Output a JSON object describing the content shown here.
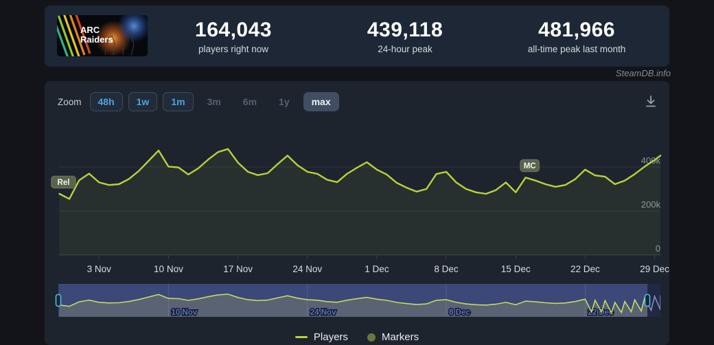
{
  "header": {
    "game_title": "ARC Raiders",
    "logo_line1": "ARC",
    "logo_line2": "Raiders",
    "stats": [
      {
        "value": "164,043",
        "label": "players right now"
      },
      {
        "value": "439,118",
        "label": "24-hour peak"
      },
      {
        "value": "481,966",
        "label": "all-time peak last month"
      }
    ]
  },
  "watermark": "SteamDB.info",
  "toolbar": {
    "zoom_label": "Zoom",
    "buttons": [
      {
        "label": "48h",
        "state": "enabled"
      },
      {
        "label": "1w",
        "state": "enabled"
      },
      {
        "label": "1m",
        "state": "enabled"
      },
      {
        "label": "3m",
        "state": "disabled"
      },
      {
        "label": "6m",
        "state": "disabled"
      },
      {
        "label": "1y",
        "state": "disabled"
      },
      {
        "label": "max",
        "state": "selected"
      }
    ]
  },
  "chart_data": {
    "type": "line",
    "title": "",
    "ylabel": "",
    "xlabel": "",
    "legend_position": "bottom",
    "grid": true,
    "ylim": [
      0,
      580000
    ],
    "dates": [
      "30 Oct",
      "31 Oct",
      "1 Nov",
      "2 Nov",
      "3 Nov",
      "4 Nov",
      "5 Nov",
      "6 Nov",
      "7 Nov",
      "8 Nov",
      "9 Nov",
      "10 Nov",
      "11 Nov",
      "12 Nov",
      "13 Nov",
      "14 Nov",
      "15 Nov",
      "16 Nov",
      "17 Nov",
      "18 Nov",
      "19 Nov",
      "20 Nov",
      "21 Nov",
      "22 Nov",
      "23 Nov",
      "24 Nov",
      "25 Nov",
      "26 Nov",
      "27 Nov",
      "28 Nov",
      "29 Nov",
      "30 Nov",
      "1 Dec",
      "2 Dec",
      "3 Dec",
      "4 Dec",
      "5 Dec",
      "6 Dec",
      "7 Dec",
      "8 Dec",
      "9 Dec",
      "10 Dec",
      "11 Dec",
      "12 Dec",
      "13 Dec",
      "14 Dec",
      "15 Dec",
      "16 Dec",
      "17 Dec",
      "18 Dec",
      "19 Dec",
      "20 Dec",
      "21 Dec",
      "22 Dec",
      "23 Dec",
      "24 Dec",
      "25 Dec",
      "26 Dec",
      "27 Dec",
      "28 Dec",
      "29 Dec",
      "30 Dec"
    ],
    "series": [
      {
        "name": "Players",
        "color": "#b7d43a",
        "values": [
          278000,
          255000,
          340000,
          370000,
          330000,
          318000,
          322000,
          345000,
          382000,
          428000,
          475000,
          402000,
          398000,
          366000,
          394000,
          434000,
          468000,
          482000,
          420000,
          378000,
          363000,
          372000,
          413000,
          452000,
          408000,
          378000,
          369000,
          342000,
          331000,
          369000,
          397000,
          422000,
          388000,
          366000,
          328000,
          306000,
          288000,
          300000,
          368000,
          378000,
          330000,
          300000,
          285000,
          278000,
          295000,
          330000,
          285000,
          352000,
          338000,
          322000,
          310000,
          318000,
          345000,
          388000,
          362000,
          356000,
          322000,
          338000,
          368000,
          402000,
          432000,
          452000
        ]
      }
    ],
    "x_ticks": [
      {
        "label": "3 Nov",
        "day": 4
      },
      {
        "label": "10 Nov",
        "day": 11
      },
      {
        "label": "17 Nov",
        "day": 18
      },
      {
        "label": "24 Nov",
        "day": 25
      },
      {
        "label": "1 Dec",
        "day": 32
      },
      {
        "label": "8 Dec",
        "day": 39
      },
      {
        "label": "15 Dec",
        "day": 46
      },
      {
        "label": "22 Dec",
        "day": 53
      },
      {
        "label": "29 Dec",
        "day": 60
      }
    ],
    "y_ticks": [
      {
        "label": "400k",
        "value": 400000
      },
      {
        "label": "200k",
        "value": 200000
      },
      {
        "label": "0",
        "value": 0
      }
    ],
    "markers": [
      {
        "label": "Rel",
        "date": "30 Oct"
      },
      {
        "label": "MC",
        "date": "16 Dec"
      }
    ]
  },
  "navigator": {
    "labels": [
      {
        "label": "10 Nov",
        "day": 11
      },
      {
        "label": "24 Nov",
        "day": 25
      },
      {
        "label": "8 Dec",
        "day": 39
      },
      {
        "label": "22 Dec",
        "day": 53
      }
    ]
  },
  "legend": [
    {
      "label": "Players",
      "swatch": "line",
      "color": "#b7d43a"
    },
    {
      "label": "Markers",
      "swatch": "circle",
      "color": "#687840"
    }
  ],
  "colors": {
    "line": "#b7d43a",
    "line_area": "rgba(183,212,58,0.07)",
    "grid": "#2d3540",
    "axis": "#3a4350",
    "y_label": "#8b939c",
    "x_label": "#d9dee3",
    "marker_badge_bg": "#59644b",
    "marker_badge_text": "#f2f4ee",
    "nav_bg": "#3b4878",
    "nav_area": "#5a6373",
    "nav_line": "#c3dc5e",
    "nav_outside": "#202944",
    "nav_line_outside": "#8d86c5",
    "nav_label": "#5570c0",
    "handle_stroke": "#4fc3e8",
    "handle_fill": "#1b2433"
  }
}
